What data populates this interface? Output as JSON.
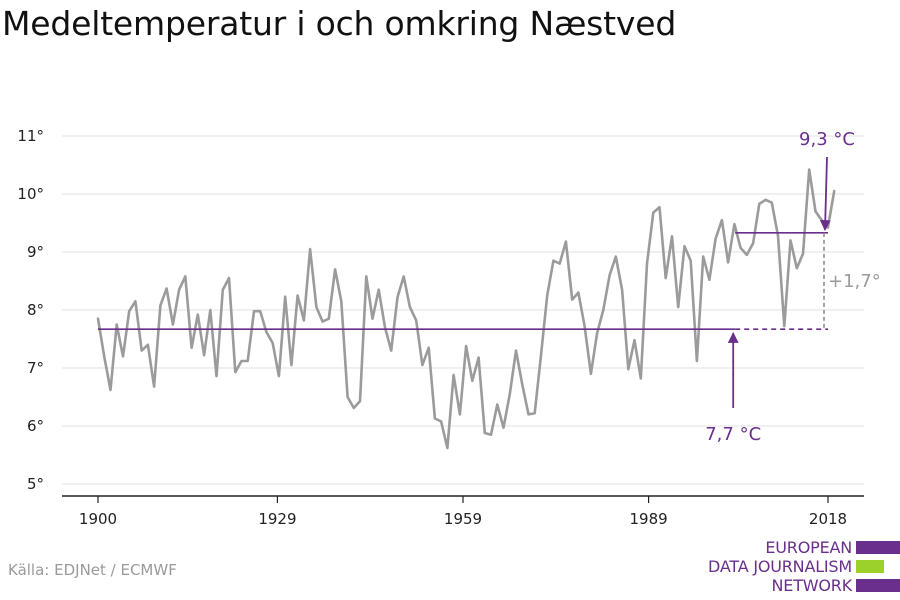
{
  "title": "Medeltemperatur i och omkring Næstved",
  "source": "Källa: EDJNet / ECMWF",
  "logo": {
    "lines": [
      "EUROPEAN",
      "DATA JOURNALISM",
      "NETWORK"
    ],
    "colors": {
      "text": "#6a2f8c",
      "bar1": "#6a2f8c",
      "bar2": "#9bd12a",
      "bar3": "#6a2f8c"
    }
  },
  "chart_data": {
    "type": "line",
    "title": "Medeltemperatur i och omkring Næstved",
    "xlabel": "",
    "ylabel": "",
    "xlim": [
      1900,
      2018
    ],
    "ylim": [
      5,
      11
    ],
    "x_ticks": [
      {
        "value": 1900,
        "label": "1900"
      },
      {
        "value": 1929,
        "label": "1929"
      },
      {
        "value": 1959,
        "label": "1959"
      },
      {
        "value": 1989,
        "label": "1989"
      },
      {
        "value": 2018,
        "label": "2018"
      }
    ],
    "y_ticks": [
      {
        "value": 5,
        "label": "5°"
      },
      {
        "value": 6,
        "label": "6°"
      },
      {
        "value": 7,
        "label": "7°"
      },
      {
        "value": 8,
        "label": "8°"
      },
      {
        "value": 9,
        "label": "9°"
      },
      {
        "value": 10,
        "label": "10°"
      },
      {
        "value": 11,
        "label": "11°"
      }
    ],
    "grid": {
      "horizontal": true,
      "vertical": false
    },
    "colors": {
      "series": "#9b9b9b",
      "reference": "#6a2f8c",
      "grid": "#e2e2e2",
      "axis": "#222222",
      "delta": "#9b9b9b"
    },
    "series": [
      {
        "x_start": 1900,
        "x_end": 2019,
        "values": [
          7.85,
          7.2,
          6.62,
          7.75,
          7.2,
          7.98,
          8.15,
          7.3,
          7.4,
          6.68,
          8.08,
          8.37,
          7.75,
          8.35,
          8.58,
          7.35,
          7.92,
          7.22,
          8.0,
          6.86,
          8.35,
          8.55,
          6.93,
          7.12,
          7.12,
          7.98,
          7.98,
          7.62,
          7.43,
          6.86,
          8.23,
          7.05,
          8.25,
          7.82,
          9.05,
          8.05,
          7.8,
          7.85,
          8.7,
          8.15,
          6.5,
          6.31,
          6.43,
          8.58,
          7.85,
          8.35,
          7.7,
          7.3,
          8.22,
          8.58,
          8.05,
          7.82,
          7.05,
          7.35,
          6.13,
          6.08,
          5.62,
          6.88,
          6.2,
          7.38,
          6.78,
          7.18,
          5.88,
          5.85,
          6.37,
          5.97,
          6.55,
          7.3,
          6.72,
          6.2,
          6.22,
          7.22,
          8.25,
          8.85,
          8.8,
          9.18,
          8.18,
          8.3,
          7.72,
          6.9,
          7.6,
          8.0,
          8.6,
          8.92,
          8.35,
          6.98,
          7.48,
          6.82,
          8.8,
          9.68,
          9.77,
          8.55,
          9.27,
          8.05,
          9.1,
          8.85,
          7.12,
          8.92,
          8.52,
          9.23,
          9.55,
          8.82,
          9.48,
          9.07,
          8.95,
          9.15,
          9.83,
          9.9,
          9.85,
          9.28,
          7.72,
          9.2,
          8.72,
          8.97,
          10.42,
          9.7,
          9.55,
          9.42,
          10.05
        ]
      }
    ],
    "reference_lines": [
      {
        "label": "7,7 °C",
        "value": 7.67,
        "x_from": 1900,
        "x_to": 2018,
        "solid_until": 2003
      },
      {
        "label": "9,3 °C",
        "value": 9.33,
        "x_from": 2003,
        "x_to": 2018
      }
    ],
    "delta_label": "+1,7°"
  }
}
